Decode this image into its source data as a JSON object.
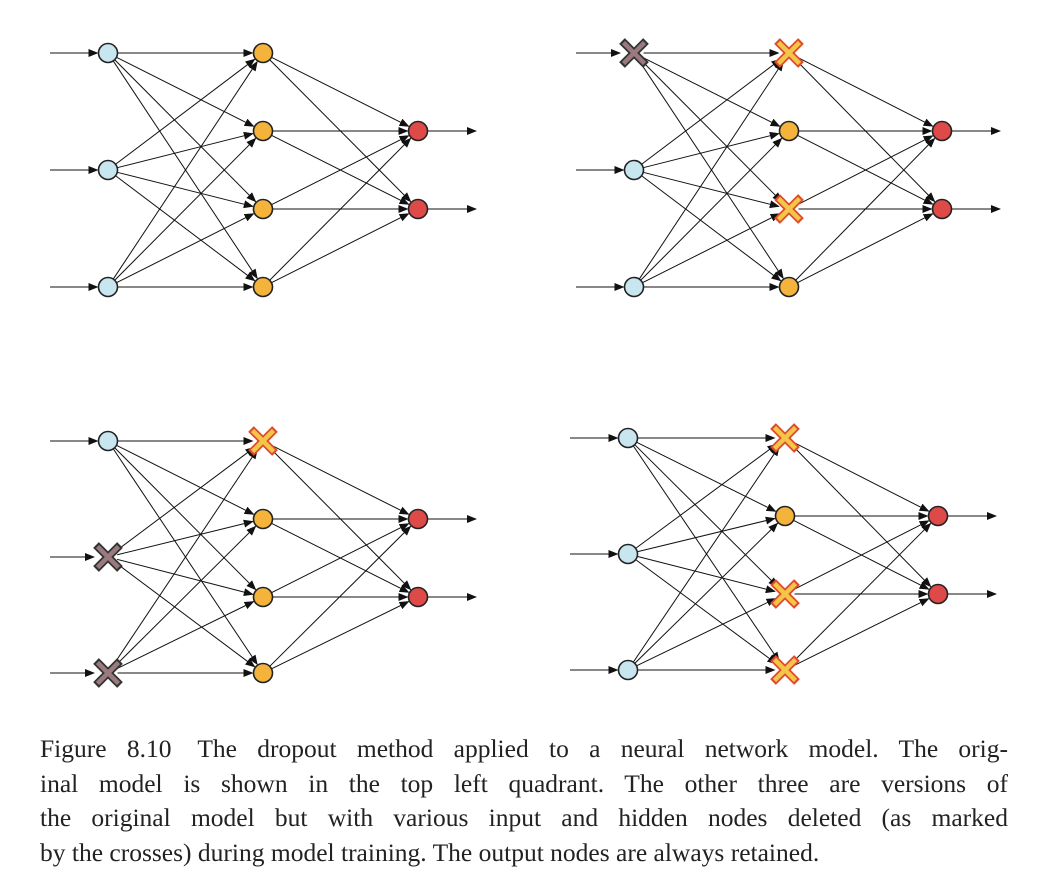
{
  "caption": {
    "figure_number": "Figure 8.10",
    "lines": [
      "The dropout method applied to a neural network model. The orig-",
      "inal model is shown in the top left quadrant. The other three are versions of",
      "the original model but with various input and hidden nodes deleted (as marked",
      "by the crosses) during model training. The output nodes are always retained."
    ]
  },
  "colors": {
    "input_node": "#c8e6ef",
    "hidden_node": "#f4b33a",
    "output_node": "#dd4a48",
    "input_cross": "#9a7a7e",
    "hidden_cross": "#f3c64a",
    "hidden_cross_border": "#e04a2a",
    "edge": "#111111"
  },
  "network": {
    "layers": [
      "input",
      "hidden",
      "output"
    ],
    "layer_sizes": [
      3,
      4,
      2
    ],
    "connectivity": "fully-connected",
    "output_arrows": true,
    "input_arrows": true
  },
  "quadrants": [
    {
      "position": "top-left",
      "dropped_inputs": [],
      "dropped_hidden": []
    },
    {
      "position": "top-right",
      "dropped_inputs": [
        0
      ],
      "dropped_hidden": [
        0,
        2
      ]
    },
    {
      "position": "bottom-left",
      "dropped_inputs": [
        1,
        2
      ],
      "dropped_hidden": [
        0
      ]
    },
    {
      "position": "bottom-right",
      "dropped_inputs": [],
      "dropped_hidden": [
        0,
        2,
        3
      ]
    }
  ]
}
